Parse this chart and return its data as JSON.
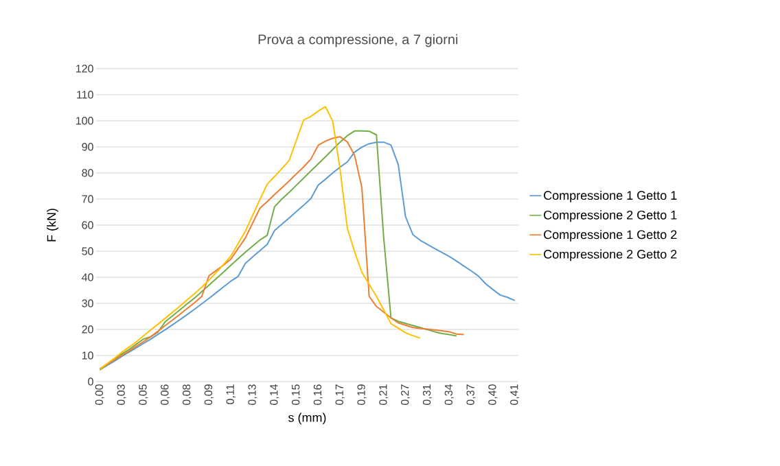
{
  "chart_data": {
    "type": "line",
    "title": "Prova a compressione, a 7 giorni",
    "xlabel": "s (mm)",
    "ylabel": "F (kN)",
    "categories": [
      "0,00",
      null,
      null,
      "0,03",
      null,
      null,
      "0,05",
      null,
      null,
      "0,06",
      null,
      null,
      "0,08",
      null,
      null,
      "0,09",
      null,
      null,
      "0,11",
      null,
      null,
      "0,13",
      null,
      null,
      "0,14",
      null,
      null,
      "0,15",
      null,
      null,
      "0,16",
      null,
      null,
      "0,17",
      null,
      null,
      "0,19",
      null,
      null,
      "0,21",
      null,
      null,
      "0,27",
      null,
      null,
      "0,31",
      null,
      null,
      "0,34",
      null,
      null,
      "0,37",
      null,
      null,
      "0,40",
      null,
      null,
      "0,41"
    ],
    "series": [
      {
        "name": "Compressione 1 Getto 1",
        "color": "#5b9bd5",
        "values": [
          4.5,
          6.2,
          7.8,
          9.6,
          11.3,
          12.9,
          14.6,
          16.3,
          18.1,
          19.9,
          21.8,
          23.7,
          25.7,
          27.7,
          29.8,
          31.9,
          34.1,
          36.3,
          38.5,
          40.3,
          45.3,
          47.8,
          50.2,
          52.6,
          57.9,
          60.3,
          62.7,
          65.2,
          67.6,
          70.2,
          75.3,
          77.6,
          80,
          82.2,
          84.2,
          88,
          89.9,
          91.2,
          91.8,
          91.8,
          90.7,
          83.2,
          63.2,
          56.4,
          54.2,
          52.6,
          51,
          49.5,
          48,
          46.2,
          44.3,
          42.5,
          40.5,
          37.5,
          35.3,
          33.2,
          32.3,
          31.1
        ]
      },
      {
        "name": "Compressione 2 Getto 1",
        "color": "#70ad47",
        "values": [
          4.5,
          6.5,
          8.6,
          10.5,
          12.3,
          14.3,
          16.3,
          17.2,
          19.0,
          23.0,
          25.2,
          27.5,
          29.8,
          32.0,
          34.5,
          37.0,
          39.5,
          42.0,
          44.6,
          47.1,
          49.6,
          52.0,
          54.3,
          56.1,
          67.0,
          70.0,
          72.5,
          75.3,
          78,
          80.8,
          83.5,
          86.2,
          89,
          91.8,
          94.3,
          96.1,
          96.1,
          96.0,
          94.6,
          55.1,
          24.4,
          23.1,
          22.3,
          21.5,
          20.7,
          19.9,
          19.1,
          18.4,
          18.0,
          17.5,
          null,
          null,
          null,
          null,
          null,
          null,
          null,
          null
        ]
      },
      {
        "name": "Compressione 1 Getto 2",
        "color": "#ed7d31",
        "values": [
          4.9,
          6.6,
          8.3,
          10.0,
          11.7,
          13.5,
          15.3,
          17.2,
          19.3,
          21.5,
          23.6,
          25.8,
          28.0,
          30.2,
          32.6,
          40.6,
          42.6,
          44.7,
          46.9,
          51.0,
          55.1,
          60.8,
          66.5,
          69.0,
          71.7,
          74.3,
          76.9,
          79.6,
          82.3,
          85.3,
          90.6,
          92.2,
          93.3,
          93.9,
          91.9,
          86.8,
          74.4,
          32.7,
          28.8,
          26.6,
          24.4,
          22.5,
          21.6,
          20.7,
          20.4,
          20.1,
          19.8,
          19.5,
          19.1,
          18.2,
          18.0,
          null,
          null,
          null,
          null,
          null,
          null,
          null
        ]
      },
      {
        "name": "Compressione 2 Getto 2",
        "color": "#ffc000",
        "values": [
          4.7,
          6.9,
          8.9,
          11.2,
          13.2,
          15.2,
          17.5,
          19.8,
          22.0,
          24.3,
          26.6,
          28.9,
          31.3,
          33.7,
          36.2,
          38.9,
          41.8,
          44.9,
          48.1,
          52.9,
          57.7,
          63.8,
          69.8,
          75.7,
          78.6,
          81.6,
          84.7,
          92.5,
          100.3,
          101.7,
          103.7,
          105.4,
          99.8,
          81.4,
          58.9,
          49.8,
          41.9,
          37.3,
          32.7,
          27.5,
          22.2,
          20.5,
          18.7,
          17.6,
          16.7,
          null,
          null,
          null,
          null,
          null,
          null,
          null,
          null,
          null,
          null,
          null,
          null,
          null
        ]
      }
    ],
    "ylim": [
      0,
      120
    ],
    "yticks": [
      0,
      10,
      20,
      30,
      40,
      50,
      60,
      70,
      80,
      90,
      100,
      110,
      120
    ],
    "grid": "y",
    "legend": "right",
    "marker": "none",
    "line_style": "solid"
  }
}
